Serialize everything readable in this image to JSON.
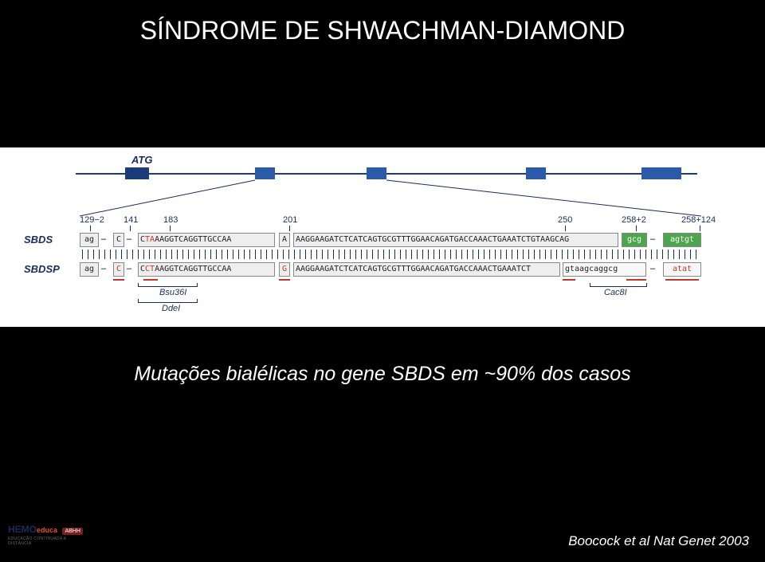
{
  "title": "SÍNDROME DE SHWACHMAN-DIAMOND",
  "mutation_caption": "Mutações bialélicas no gene SBDS em ~90% dos casos",
  "citation": "Boocock et al Nat Genet 2003",
  "colors": {
    "background": "#000000",
    "panel_bg": "#ffffff",
    "gene_line": "#1f3b7a",
    "exon": "#2b5aa8",
    "exon_dark": "#1a3d7a",
    "text_white": "#ffffff",
    "seq_label": "#1a2d5a",
    "highlight_red": "#c0392b",
    "green_intron": "#4ca64c"
  },
  "diagram": {
    "atg_label": "ATG",
    "row_labels": {
      "sbds": "SBDS",
      "sbdsp": "SBDSP"
    },
    "positions": [
      "129−2",
      "141",
      "183",
      "201",
      "250",
      "258+2",
      "258+124"
    ],
    "enzymes": {
      "bsu36i": "Bsu36I",
      "ddei": "DdeI",
      "cac8i": "Cac8I"
    },
    "sbds": {
      "flank_left": "ag",
      "c141": "C",
      "seg1_pre": "C",
      "seg1_highlight": "TA",
      "seg1_post": "AAGGTCAGGTTGCCAA",
      "c201": "A",
      "seg2": "AAGGAAGATCTCATCAGTGCGTTTGGAACAGATGACCAAACTGAAATCTGTAAGCAG",
      "flank_right1": "gcg",
      "flank_right2": "agtgt"
    },
    "sbdsp": {
      "flank_left": "ag",
      "c141": "C",
      "seg1_pre": "C",
      "seg1_highlight": "CT",
      "seg1_post": "AAGGTCAGGTTGCCAA",
      "c201": "G",
      "seg2": "AAGGAAGATCTCATCAGTGCGTTTGGAACAGATGACCAAACTGAAATCT",
      "seg3": "gtaagcaggcg",
      "flank_right2": "atat"
    }
  },
  "logo": {
    "main": "HEMO",
    "sub": "educa",
    "tagline": "EDUCAÇÃO CONTINUADA A DISTÂNCIA",
    "badge": "ABHH"
  }
}
